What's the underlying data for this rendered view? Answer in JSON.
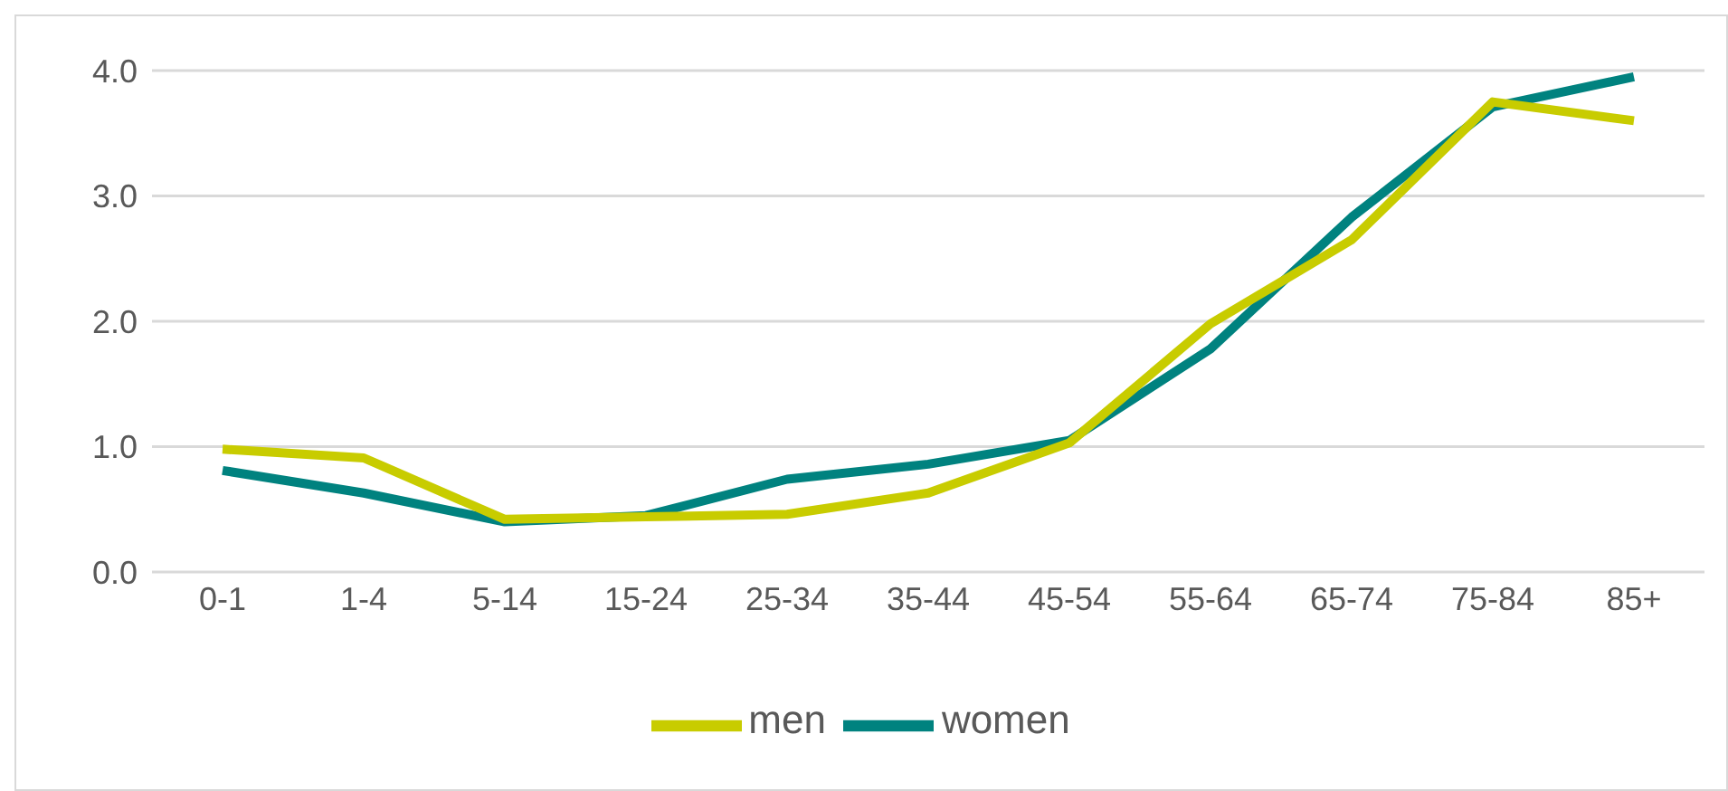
{
  "chart_data": {
    "type": "line",
    "categories": [
      "0-1",
      "1-4",
      "5-14",
      "15-24",
      "25-34",
      "35-44",
      "45-54",
      "55-64",
      "65-74",
      "75-84",
      "85+"
    ],
    "series": [
      {
        "name": "women",
        "color": "#00827f",
        "values": [
          0.81,
          0.63,
          0.4,
          0.45,
          0.74,
          0.86,
          1.05,
          1.78,
          2.83,
          3.71,
          3.95
        ]
      },
      {
        "name": "men",
        "color": "#c8cc00",
        "values": [
          0.98,
          0.91,
          0.42,
          0.44,
          0.46,
          0.63,
          1.03,
          1.98,
          2.65,
          3.75,
          3.6
        ]
      }
    ],
    "ylim": [
      0,
      4
    ],
    "yticks": [
      {
        "value": 0,
        "label": "0.0"
      },
      {
        "value": 1,
        "label": "1.0"
      },
      {
        "value": 2,
        "label": "2.0"
      },
      {
        "value": 3,
        "label": "3.0"
      },
      {
        "value": 4,
        "label": "4.0"
      }
    ],
    "grid": "y",
    "legend": "bottom",
    "marker": "none",
    "line_style": "solid"
  }
}
